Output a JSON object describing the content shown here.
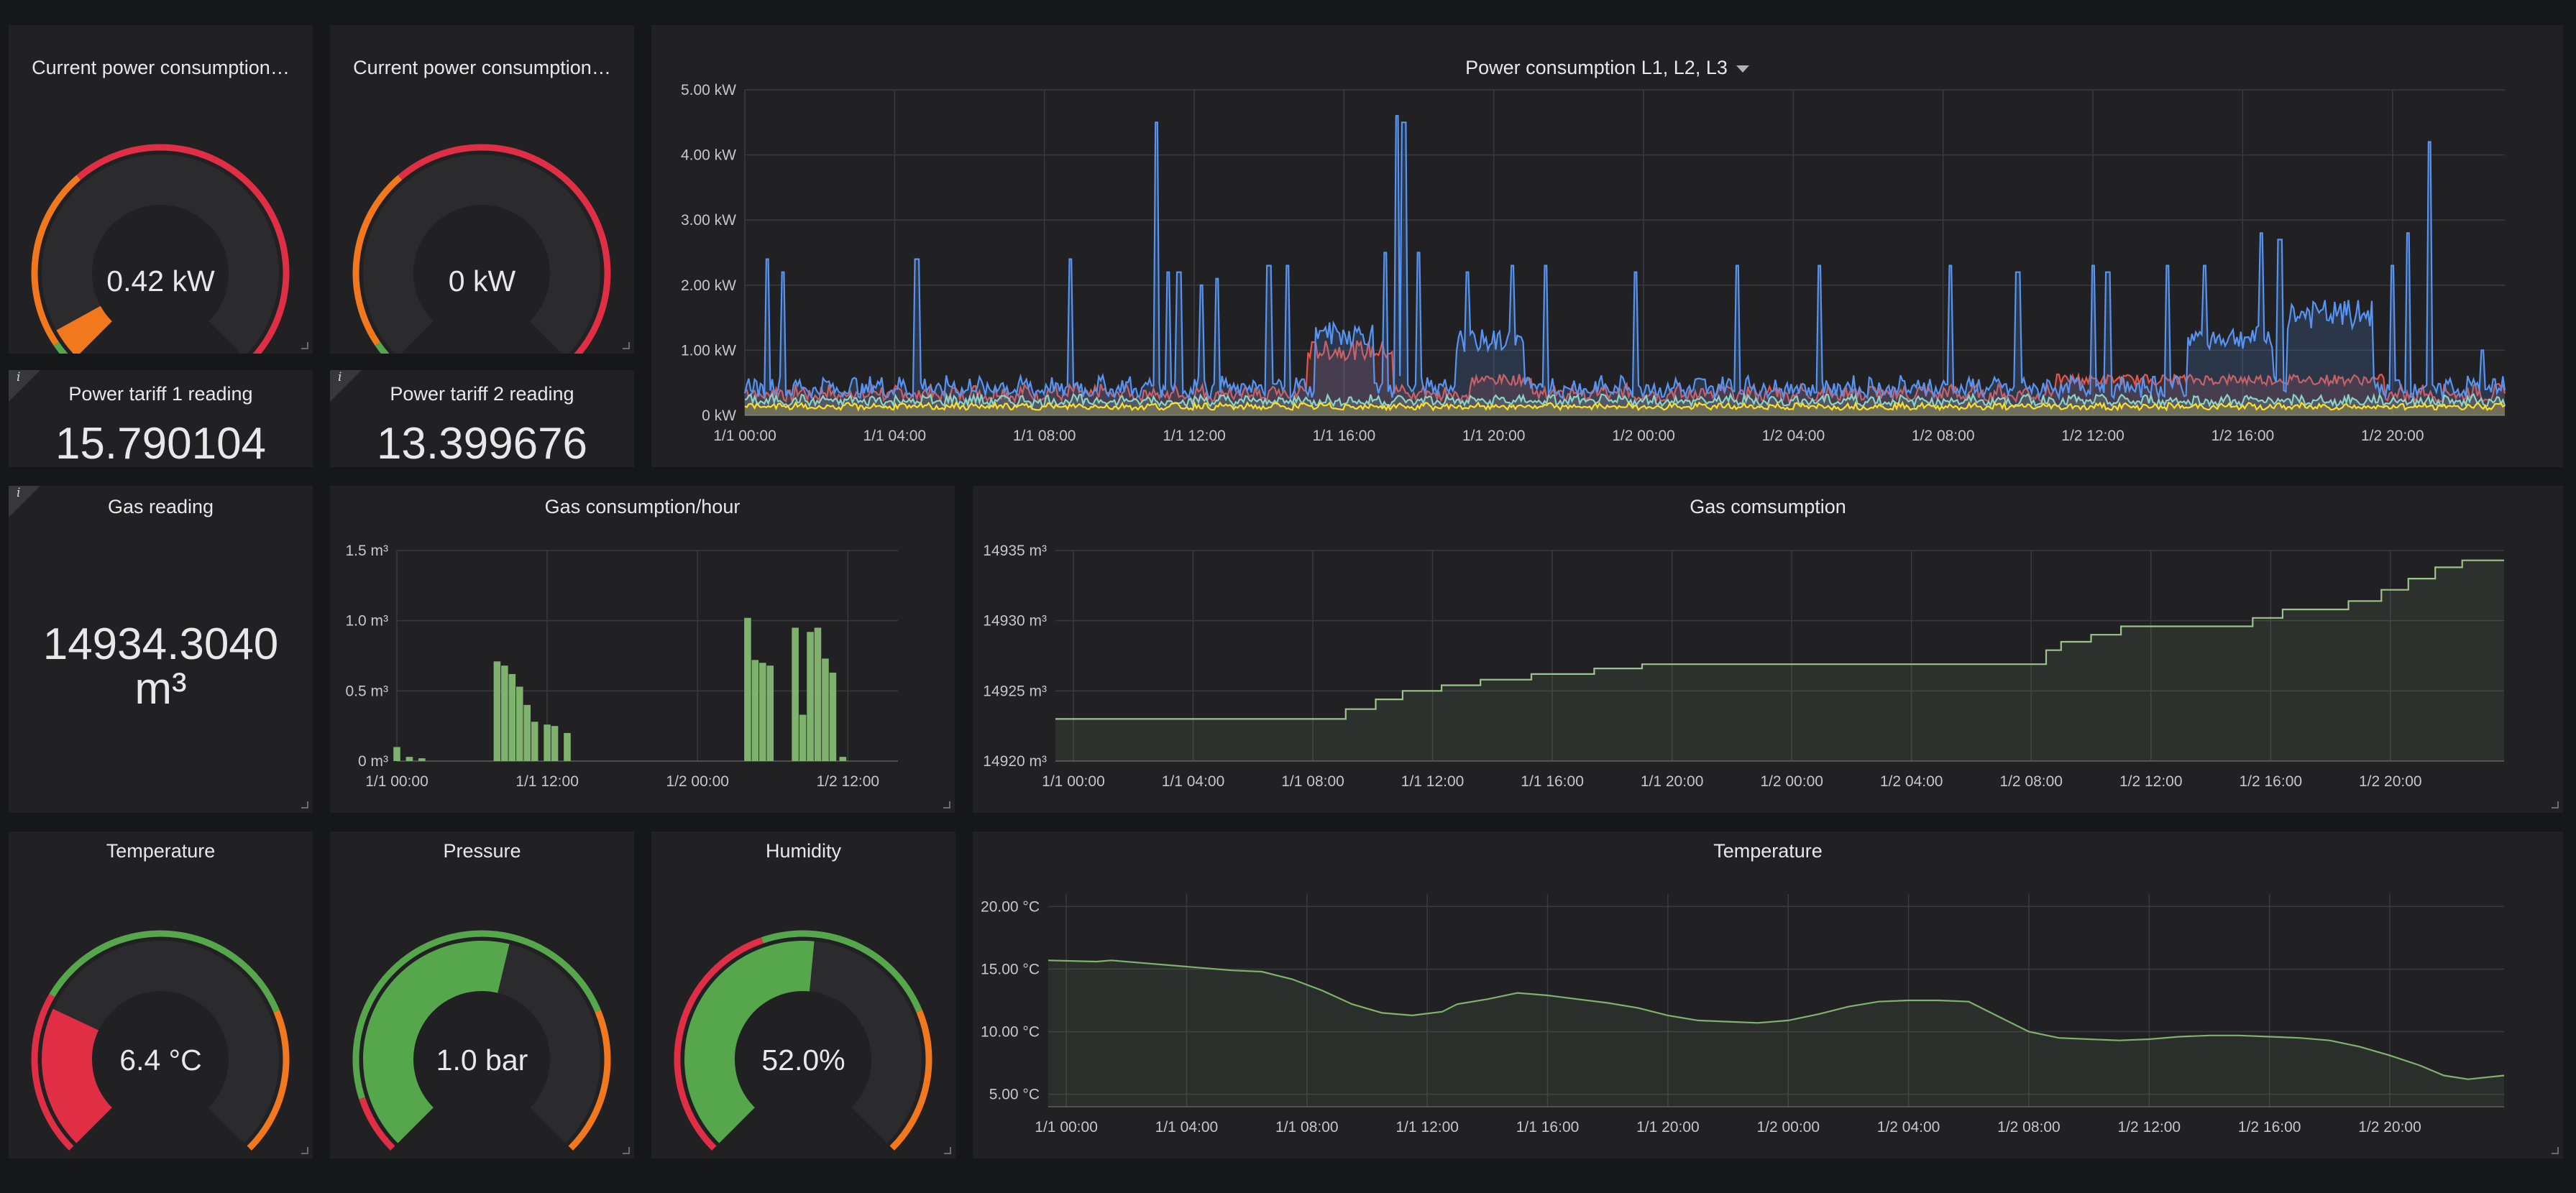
{
  "panels": {
    "power_gauge_1": {
      "title": "Current power consumption…",
      "value": "0.42 kW",
      "fraction": 0.06
    },
    "power_gauge_2": {
      "title": "Current power consumption…",
      "value": "0 kW",
      "fraction": 0.0
    },
    "tariff_1": {
      "title": "Power tariff 1 reading",
      "value": "15.790104",
      "info": "i"
    },
    "tariff_2": {
      "title": "Power tariff 2 reading",
      "value": "13.399676",
      "info": "i"
    },
    "gas_reading": {
      "title": "Gas reading",
      "value_line1": "14934.3040",
      "value_line2": "m³",
      "info": "i"
    },
    "temp_gauge": {
      "title": "Temperature",
      "value": "6.4 °C",
      "fraction": 0.26
    },
    "pressure_gauge": {
      "title": "Pressure",
      "value": "1.0 bar",
      "fraction": 0.55
    },
    "humidity_gauge": {
      "title": "Humidity",
      "value": "52.0%",
      "fraction": 0.52
    }
  },
  "colors": {
    "green": "#56a64b",
    "orange": "#f2781d",
    "red": "#e02f44",
    "gauge_track": "#2b2b2e",
    "power_blue": "#5794f2",
    "power_red": "#e0564b",
    "power_yellow": "#fade2a",
    "power_teal": "#8ad2c8",
    "gas_line": "#9ac48a",
    "gas_bar": "#7eb26d",
    "temp_line": "#7eb26d"
  },
  "chart_data": [
    {
      "id": "power",
      "type": "line",
      "title": "Power consumption L1, L2, L3",
      "y_ticks": [
        "0 kW",
        "1.00 kW",
        "2.00 kW",
        "3.00 kW",
        "4.00 kW",
        "5.00 kW"
      ],
      "ylim": [
        0,
        5
      ],
      "x_ticks": [
        "1/1 00:00",
        "1/1 04:00",
        "1/1 08:00",
        "1/1 12:00",
        "1/1 16:00",
        "1/1 20:00",
        "1/2 00:00",
        "1/2 04:00",
        "1/2 08:00",
        "1/2 12:00",
        "1/2 16:00",
        "1/2 20:00"
      ],
      "x_range_hours": [
        0,
        47
      ],
      "series": [
        {
          "color": "power_blue",
          "baseline": 0.38,
          "spikes": [
            [
              0.6,
              2.4
            ],
            [
              1.0,
              2.2
            ],
            [
              4.6,
              2.4
            ],
            [
              8.7,
              2.4
            ],
            [
              11.0,
              4.5
            ],
            [
              11.3,
              2.2
            ],
            [
              11.6,
              2.2
            ],
            [
              12.2,
              2.0
            ],
            [
              12.6,
              2.1
            ],
            [
              14.0,
              2.3
            ],
            [
              14.5,
              2.3
            ],
            [
              15.4,
              1.3
            ],
            [
              17.1,
              2.5
            ],
            [
              17.4,
              4.6
            ],
            [
              17.6,
              4.5
            ],
            [
              18.0,
              2.5
            ],
            [
              19.3,
              2.2
            ],
            [
              20.5,
              2.3
            ],
            [
              21.4,
              2.3
            ],
            [
              23.8,
              2.2
            ],
            [
              26.5,
              2.3
            ],
            [
              28.7,
              2.3
            ],
            [
              32.2,
              2.3
            ],
            [
              34.0,
              2.2
            ],
            [
              36.0,
              2.3
            ],
            [
              36.4,
              2.2
            ],
            [
              38.0,
              2.3
            ],
            [
              39.0,
              2.3
            ],
            [
              40.5,
              2.8
            ],
            [
              41.0,
              2.7
            ],
            [
              44.0,
              2.3
            ],
            [
              44.4,
              2.8
            ],
            [
              45.0,
              4.2
            ],
            [
              46.4,
              1.0
            ]
          ],
          "plateaus": [
            [
              15.2,
              16.8,
              1.25
            ],
            [
              19.0,
              20.8,
              1.15
            ],
            [
              38.5,
              40.8,
              1.2
            ],
            [
              41.2,
              43.5,
              1.55
            ]
          ]
        },
        {
          "color": "power_red",
          "baseline": 0.3,
          "plateaus": [
            [
              15.0,
              17.3,
              1.0
            ],
            [
              19.4,
              21.0,
              0.55
            ],
            [
              35.0,
              43.8,
              0.55
            ]
          ]
        },
        {
          "color": "power_yellow",
          "baseline": 0.12
        },
        {
          "color": "power_teal",
          "baseline": 0.2
        }
      ]
    },
    {
      "id": "gas_hour",
      "type": "bar",
      "title": "Gas consumption/hour",
      "y_ticks": [
        "0 m³",
        "0.5 m³",
        "1.0 m³",
        "1.5 m³"
      ],
      "ylim": [
        0,
        1.5
      ],
      "x_ticks": [
        "1/1 00:00",
        "1/1 12:00",
        "1/2 00:00",
        "1/2 12:00"
      ],
      "x_range_hours": [
        0,
        40
      ],
      "bars": [
        [
          0,
          0.1
        ],
        [
          1,
          0.03
        ],
        [
          2,
          0.02
        ],
        [
          8,
          0.71
        ],
        [
          8.6,
          0.68
        ],
        [
          9.2,
          0.62
        ],
        [
          9.8,
          0.53
        ],
        [
          10.4,
          0.4
        ],
        [
          11.0,
          0.28
        ],
        [
          12.0,
          0.26
        ],
        [
          12.6,
          0.25
        ],
        [
          13.6,
          0.2
        ],
        [
          28.0,
          1.02
        ],
        [
          28.6,
          0.72
        ],
        [
          29.2,
          0.7
        ],
        [
          29.8,
          0.68
        ],
        [
          31.8,
          0.95
        ],
        [
          32.4,
          0.33
        ],
        [
          33.0,
          0.92
        ],
        [
          33.6,
          0.95
        ],
        [
          34.2,
          0.73
        ],
        [
          34.8,
          0.63
        ],
        [
          35.6,
          0.03
        ]
      ]
    },
    {
      "id": "gas_total",
      "type": "area",
      "title": "Gas comsumption",
      "y_ticks": [
        "14920 m³",
        "14925 m³",
        "14930 m³",
        "14935 m³"
      ],
      "ylim": [
        14920,
        14935
      ],
      "x_ticks": [
        "1/1 00:00",
        "1/1 04:00",
        "1/1 08:00",
        "1/1 12:00",
        "1/1 16:00",
        "1/1 20:00",
        "1/2 00:00",
        "1/2 04:00",
        "1/2 08:00",
        "1/2 12:00",
        "1/2 16:00",
        "1/2 20:00"
      ],
      "x_range_hours": [
        -0.6,
        47.8
      ],
      "points": [
        [
          -0.6,
          14923.0
        ],
        [
          9.1,
          14923.0
        ],
        [
          9.1,
          14923.7
        ],
        [
          10.1,
          14923.7
        ],
        [
          10.1,
          14924.4
        ],
        [
          11.0,
          14924.4
        ],
        [
          11.0,
          14925.0
        ],
        [
          12.3,
          14925.0
        ],
        [
          12.3,
          14925.4
        ],
        [
          13.6,
          14925.4
        ],
        [
          13.6,
          14925.8
        ],
        [
          15.3,
          14925.8
        ],
        [
          15.3,
          14926.2
        ],
        [
          17.4,
          14926.2
        ],
        [
          17.4,
          14926.6
        ],
        [
          19.0,
          14926.6
        ],
        [
          19.0,
          14926.9
        ],
        [
          32.5,
          14926.9
        ],
        [
          32.5,
          14927.9
        ],
        [
          33.0,
          14927.9
        ],
        [
          33.0,
          14928.5
        ],
        [
          34.0,
          14928.5
        ],
        [
          34.0,
          14929.0
        ],
        [
          35.0,
          14929.0
        ],
        [
          35.0,
          14929.6
        ],
        [
          39.4,
          14929.6
        ],
        [
          39.4,
          14930.2
        ],
        [
          40.4,
          14930.2
        ],
        [
          40.4,
          14930.8
        ],
        [
          42.6,
          14930.8
        ],
        [
          42.6,
          14931.4
        ],
        [
          43.7,
          14931.4
        ],
        [
          43.7,
          14932.2
        ],
        [
          44.6,
          14932.2
        ],
        [
          44.6,
          14933.0
        ],
        [
          45.5,
          14933.0
        ],
        [
          45.5,
          14933.8
        ],
        [
          46.4,
          14933.8
        ],
        [
          46.4,
          14934.3
        ],
        [
          47.8,
          14934.3
        ]
      ]
    },
    {
      "id": "temperature",
      "type": "area",
      "title": "Temperature",
      "y_ticks": [
        "5.00 °C",
        "10.00 °C",
        "15.00 °C",
        "20.00 °C"
      ],
      "ylim": [
        4,
        21
      ],
      "x_ticks": [
        "1/1 00:00",
        "1/1 04:00",
        "1/1 08:00",
        "1/1 12:00",
        "1/1 16:00",
        "1/1 20:00",
        "1/2 00:00",
        "1/2 04:00",
        "1/2 08:00",
        "1/2 12:00",
        "1/2 16:00",
        "1/2 20:00"
      ],
      "x_range_hours": [
        -0.6,
        47.8
      ],
      "points": [
        [
          -0.6,
          15.7
        ],
        [
          1.0,
          15.6
        ],
        [
          1.5,
          15.7
        ],
        [
          2.5,
          15.5
        ],
        [
          4.0,
          15.2
        ],
        [
          5.5,
          14.9
        ],
        [
          6.5,
          14.8
        ],
        [
          7.5,
          14.2
        ],
        [
          8.5,
          13.3
        ],
        [
          9.5,
          12.2
        ],
        [
          10.5,
          11.5
        ],
        [
          11.5,
          11.3
        ],
        [
          12.5,
          11.6
        ],
        [
          13.0,
          12.2
        ],
        [
          14.0,
          12.6
        ],
        [
          15.0,
          13.1
        ],
        [
          16.0,
          12.9
        ],
        [
          17.0,
          12.6
        ],
        [
          18.0,
          12.3
        ],
        [
          19.0,
          11.9
        ],
        [
          20.0,
          11.3
        ],
        [
          21.0,
          10.9
        ],
        [
          22.0,
          10.8
        ],
        [
          23.0,
          10.7
        ],
        [
          24.0,
          10.9
        ],
        [
          25.0,
          11.4
        ],
        [
          26.0,
          12.0
        ],
        [
          27.0,
          12.4
        ],
        [
          28.0,
          12.5
        ],
        [
          29.0,
          12.5
        ],
        [
          30.0,
          12.4
        ],
        [
          31.0,
          11.2
        ],
        [
          32.0,
          10.0
        ],
        [
          33.0,
          9.5
        ],
        [
          34.0,
          9.4
        ],
        [
          35.0,
          9.3
        ],
        [
          36.0,
          9.4
        ],
        [
          37.0,
          9.6
        ],
        [
          38.0,
          9.7
        ],
        [
          39.0,
          9.7
        ],
        [
          40.0,
          9.6
        ],
        [
          41.0,
          9.5
        ],
        [
          42.0,
          9.3
        ],
        [
          43.0,
          8.8
        ],
        [
          44.0,
          8.1
        ],
        [
          45.0,
          7.3
        ],
        [
          45.8,
          6.5
        ],
        [
          46.6,
          6.2
        ],
        [
          47.8,
          6.5
        ]
      ]
    }
  ]
}
